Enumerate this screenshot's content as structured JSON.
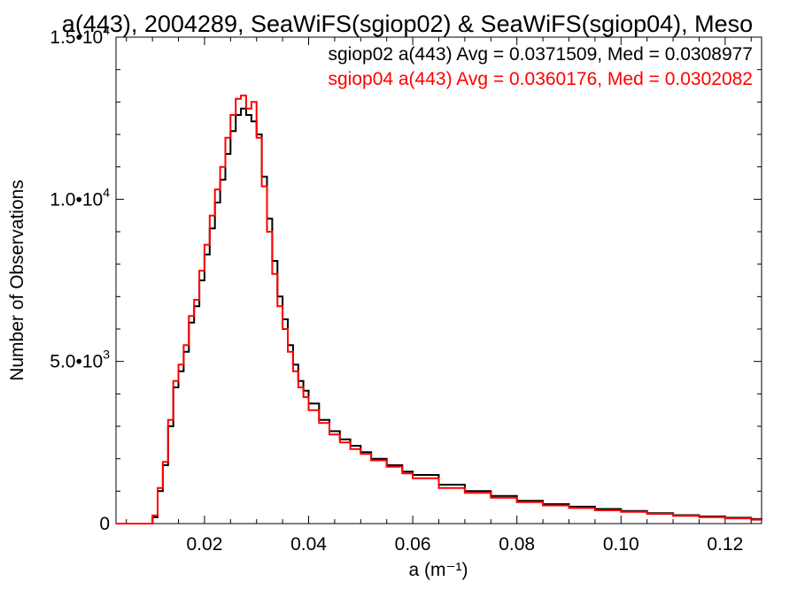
{
  "chart_data": {
    "type": "line",
    "step": true,
    "title": "a(443), 2004289, SeaWiFS(sgiop02) & SeaWiFS(sgiop04), Meso",
    "xlabel": "a (m⁻¹)",
    "ylabel": "Number of Observations",
    "xlim": [
      0.003,
      0.127
    ],
    "ylim": [
      0,
      15000
    ],
    "xticks": [
      {
        "value": 0.02,
        "label": "0.02"
      },
      {
        "value": 0.04,
        "label": "0.04"
      },
      {
        "value": 0.06,
        "label": "0.06"
      },
      {
        "value": 0.08,
        "label": "0.08"
      },
      {
        "value": 0.1,
        "label": "0.10"
      },
      {
        "value": 0.12,
        "label": "0.12"
      }
    ],
    "yticks": [
      {
        "value": 0,
        "label": "0",
        "mantissa": "0",
        "exponent": ""
      },
      {
        "value": 5000,
        "label": "5.0•10³",
        "mantissa": "5.0•10",
        "exponent": "3"
      },
      {
        "value": 10000,
        "label": "1.0•10⁴",
        "mantissa": "1.0•10",
        "exponent": "4"
      },
      {
        "value": 15000,
        "label": "1.5•10⁴",
        "mantissa": "1.5•10",
        "exponent": "4"
      }
    ],
    "grid": false,
    "legend": "top-right",
    "colors": {
      "sgiop02": "#000000",
      "sgiop04": "#ff0000"
    },
    "series": [
      {
        "name": "sgiop02 a(443) Avg = 0.0371509, Med = 0.0308977",
        "color": "#000000",
        "x": [
          0.003,
          0.009,
          0.01,
          0.011,
          0.012,
          0.013,
          0.014,
          0.015,
          0.016,
          0.017,
          0.018,
          0.019,
          0.02,
          0.021,
          0.022,
          0.023,
          0.024,
          0.025,
          0.026,
          0.027,
          0.028,
          0.029,
          0.03,
          0.031,
          0.032,
          0.033,
          0.034,
          0.035,
          0.036,
          0.037,
          0.038,
          0.039,
          0.04,
          0.042,
          0.044,
          0.046,
          0.048,
          0.05,
          0.052,
          0.055,
          0.058,
          0.06,
          0.065,
          0.07,
          0.075,
          0.08,
          0.085,
          0.09,
          0.095,
          0.1,
          0.105,
          0.11,
          0.115,
          0.12,
          0.125,
          0.127
        ],
        "values": [
          0,
          0,
          200,
          1000,
          1800,
          3000,
          4200,
          4700,
          5300,
          6200,
          6700,
          7500,
          8300,
          9100,
          9900,
          10600,
          11400,
          12100,
          12600,
          12800,
          12600,
          12400,
          12000,
          10700,
          9400,
          8100,
          7000,
          6300,
          5500,
          4900,
          4400,
          4100,
          3700,
          3200,
          2850,
          2600,
          2400,
          2200,
          2000,
          1800,
          1600,
          1500,
          1200,
          1000,
          850,
          700,
          600,
          520,
          450,
          390,
          320,
          260,
          220,
          180,
          140,
          100
        ]
      },
      {
        "name": "sgiop04 a(443) Avg = 0.0360176, Med = 0.0302082",
        "color": "#ff0000",
        "x": [
          0.003,
          0.009,
          0.01,
          0.011,
          0.012,
          0.013,
          0.014,
          0.015,
          0.016,
          0.017,
          0.018,
          0.019,
          0.02,
          0.021,
          0.022,
          0.023,
          0.024,
          0.025,
          0.026,
          0.027,
          0.028,
          0.029,
          0.03,
          0.031,
          0.032,
          0.033,
          0.034,
          0.035,
          0.036,
          0.037,
          0.038,
          0.039,
          0.04,
          0.042,
          0.044,
          0.046,
          0.048,
          0.05,
          0.052,
          0.055,
          0.058,
          0.06,
          0.065,
          0.07,
          0.075,
          0.08,
          0.085,
          0.09,
          0.095,
          0.1,
          0.105,
          0.11,
          0.115,
          0.12,
          0.125,
          0.127
        ],
        "values": [
          0,
          0,
          250,
          1100,
          1900,
          3200,
          4400,
          4900,
          5500,
          6400,
          6900,
          7800,
          8600,
          9500,
          10300,
          11000,
          11900,
          12600,
          13100,
          13200,
          12800,
          13000,
          11900,
          10400,
          9000,
          7700,
          6700,
          6000,
          5300,
          4700,
          4200,
          3900,
          3500,
          3100,
          2750,
          2500,
          2300,
          2150,
          1950,
          1750,
          1550,
          1400,
          1100,
          950,
          800,
          660,
          560,
          480,
          410,
          360,
          300,
          240,
          200,
          160,
          120,
          90
        ]
      }
    ]
  }
}
